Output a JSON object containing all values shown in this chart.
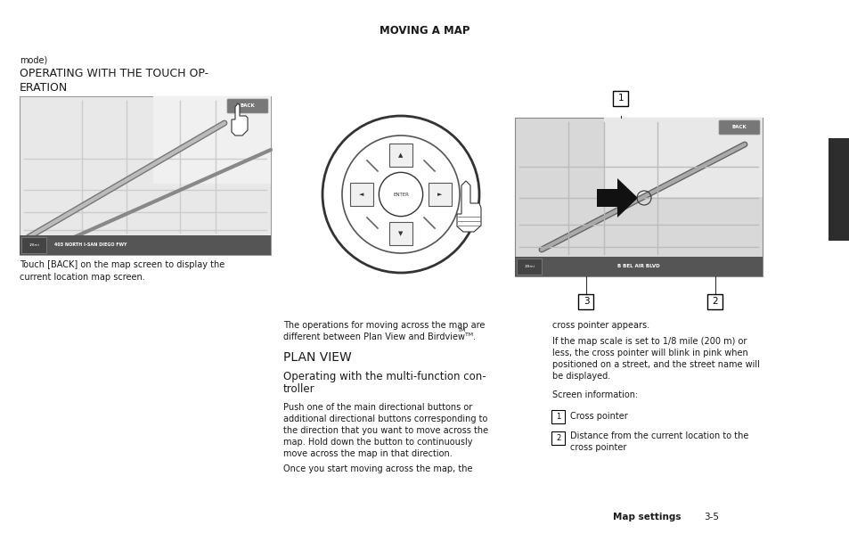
{
  "title": "MOVING A MAP",
  "bg_color": "#ffffff",
  "page_width": 9.54,
  "page_height": 6.08,
  "right_tab_color": "#2d2d2d",
  "section_label": "mode)",
  "heading": "OPERATING WITH THE TOUCH OP-\nERATION",
  "caption1": "Touch [BACK] on the map screen to display the\ncurrent location map screen.",
  "plan_view_heading": "PLAN VIEW",
  "multi_func_heading": "Operating with the multi-function con-\ntroller",
  "multi_func_body1": "Push one of the main directional buttons or",
  "multi_func_body2": "additional directional buttons corresponding to",
  "multi_func_body3": "the direction that you want to move across the",
  "multi_func_body4": "map. Hold down the button to continuously",
  "multi_func_body5": "move across the map in that direction.",
  "once_text": "Once you start moving across the map, the",
  "right_col_text1": "cross pointer appears.",
  "right_col_text2_1": "If the map scale is set to 1/8 mile (200 m) or",
  "right_col_text2_2": "less, the cross pointer will blink in pink when",
  "right_col_text2_3": "positioned on a street, and the street name will",
  "right_col_text2_4": "be displayed.",
  "screen_info": "Screen information:",
  "item1": "Cross pointer",
  "item2_1": "Distance from the current location to the",
  "item2_2": "cross pointer",
  "footer_bold": "Map settings",
  "footer_num": "3-5"
}
